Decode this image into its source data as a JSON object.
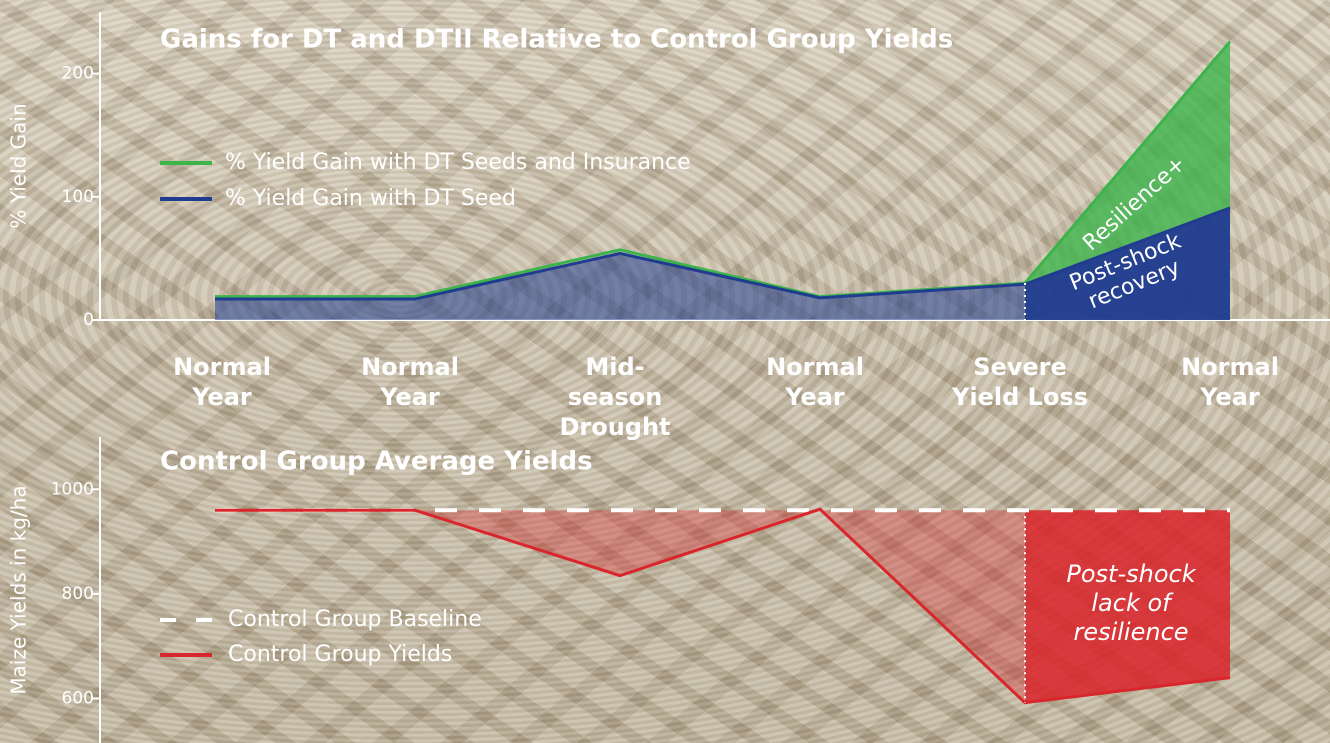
{
  "chart_data": [
    {
      "type": "area",
      "title": "Gains for DT and DTII Relative to Control Group Yields",
      "ylabel": "% Yield Gain",
      "categories": [
        "Normal Year",
        "Normal Year",
        "Mid-season Drought",
        "Normal Year",
        "Severe Yield Loss",
        "Normal Year"
      ],
      "series": [
        {
          "name": "% Yield Gain with DT Seeds and Insurance",
          "color": "#3cb44b",
          "values": [
            19,
            19,
            57,
            19,
            30,
            226
          ]
        },
        {
          "name": "% Yield Gain with DT Seed",
          "color": "#1f3c8f",
          "values": [
            17,
            17,
            54,
            18,
            29,
            91
          ]
        }
      ],
      "ylim": [
        0,
        250
      ],
      "yticks": [
        0,
        100,
        200
      ],
      "annotations": [
        "Resilience+",
        "Post-shock recovery"
      ]
    },
    {
      "type": "line",
      "title": "Control Group Average Yields",
      "ylabel": "Maize Yields in kg/ha",
      "series": [
        {
          "name": "Control Group Baseline",
          "color": "#ffffff",
          "dashed": true,
          "values": [
            960,
            960,
            960,
            960,
            960,
            960
          ]
        },
        {
          "name": "Control Group Yields",
          "color": "#d9262c",
          "values": [
            960,
            960,
            835,
            962,
            592,
            640
          ]
        }
      ],
      "ylim": [
        515,
        1100
      ],
      "yticks": [
        600,
        800,
        1000
      ],
      "annotations": [
        "Post-shock lack of resilience"
      ]
    }
  ]
}
